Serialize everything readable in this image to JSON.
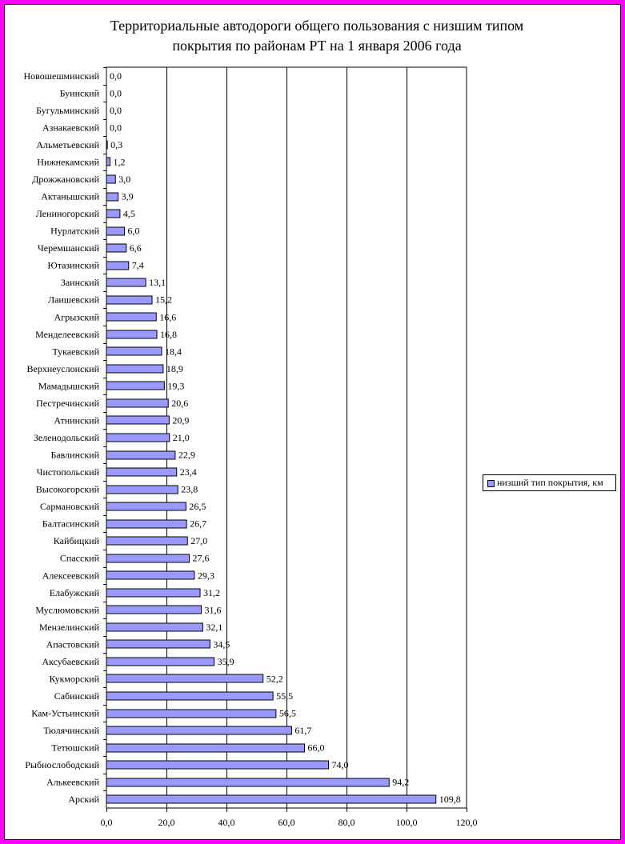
{
  "chart_data": {
    "type": "bar",
    "orientation": "horizontal",
    "title": "Территориальные автодороги общего пользования с низшим типом покрытия по районам РТ на 1 января 2006 года",
    "title_lines": [
      "Территориальные автодороги общего пользования с низшим типом",
      "покрытия по районам РТ на 1 января 2006 года"
    ],
    "categories": [
      "Новошешминский",
      "Буинский",
      "Бугульминский",
      "Азнакаевский",
      "Альметьевский",
      "Нижнекамский",
      "Дрожжановский",
      "Актанышский",
      "Лениногорский",
      "Нурлатский",
      "Черемшанский",
      "Ютазинский",
      "Заинский",
      "Лаишевский",
      "Агрызский",
      "Менделеевский",
      "Тукаевский",
      "Верхнеуслонский",
      "Мамадышский",
      "Пестречинский",
      "Атнинский",
      "Зеленодольский",
      "Бавлинский",
      "Чистопольский",
      "Высокогорский",
      "Сармановский",
      "Балтасинский",
      "Кайбицкий",
      "Спасский",
      "Алексеевский",
      "Елабужский",
      "Муслюмовский",
      "Мензелинский",
      "Апастовский",
      "Аксубаевский",
      "Кукморский",
      "Сабинский",
      "Кам-Устьинский",
      "Тюлячинский",
      "Тетюшский",
      "Рыбнослободский",
      "Алькеевский",
      "Арский"
    ],
    "series": [
      {
        "name": "низший тип покрытия, км",
        "values": [
          0.0,
          0.0,
          0.0,
          0.0,
          0.3,
          1.2,
          3.0,
          3.9,
          4.5,
          6.0,
          6.6,
          7.4,
          13.1,
          15.2,
          16.6,
          16.8,
          18.4,
          18.9,
          19.3,
          20.6,
          20.9,
          21.0,
          22.9,
          23.4,
          23.8,
          26.5,
          26.7,
          27.0,
          27.6,
          29.3,
          31.2,
          31.6,
          32.1,
          34.5,
          35.9,
          52.2,
          55.5,
          56.5,
          61.7,
          66.0,
          74.0,
          94.2,
          109.8
        ],
        "labels": [
          "0,0",
          "0,0",
          "0,0",
          "0,0",
          "0,3",
          "1,2",
          "3,0",
          "3,9",
          "4,5",
          "6,0",
          "6,6",
          "7,4",
          "13,1",
          "15,2",
          "16,6",
          "16,8",
          "18,4",
          "18,9",
          "19,3",
          "20,6",
          "20,9",
          "21,0",
          "22,9",
          "23,4",
          "23,8",
          "26,5",
          "26,7",
          "27,0",
          "27,6",
          "29,3",
          "31,2",
          "31,6",
          "32,1",
          "34,5",
          "35,9",
          "52,2",
          "55,5",
          "56,5",
          "61,7",
          "66,0",
          "74,0",
          "94,2",
          "109,8"
        ],
        "color": "#9999ff"
      }
    ],
    "xlim": [
      0,
      120
    ],
    "xticks": [
      0,
      20,
      40,
      60,
      80,
      100,
      120
    ],
    "xtick_labels": [
      "0,0",
      "20,0",
      "40,0",
      "60,0",
      "80,0",
      "100,0",
      "120,0"
    ],
    "grid": "vertical major gridlines",
    "legend_position": "right",
    "frame_color": "#ff00ff",
    "bar_color": "#9999ff"
  }
}
